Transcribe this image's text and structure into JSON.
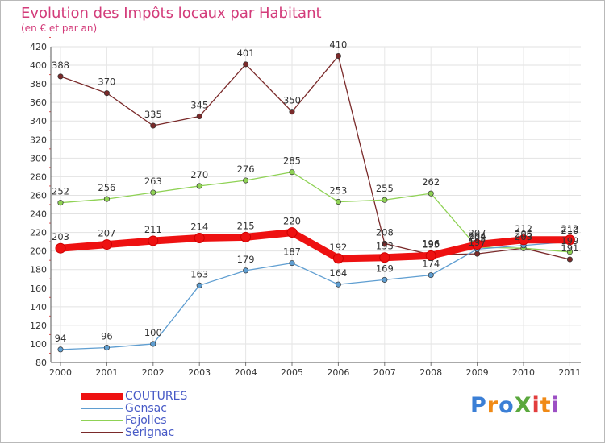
{
  "chart_data": {
    "type": "line",
    "title": "Evolution des Impôts locaux par Habitant",
    "subtitle": "(en € et par an)",
    "xlabel": "",
    "ylabel": "",
    "ylim": [
      80,
      420
    ],
    "yticks": [
      "80",
      "100",
      "120",
      "140",
      "160",
      "180",
      "200",
      "220",
      "240",
      "260",
      "280",
      "300",
      "320",
      "340",
      "360",
      "380",
      "400",
      "420"
    ],
    "categories": [
      "2000",
      "2001",
      "2002",
      "2003",
      "2004",
      "2005",
      "2006",
      "2007",
      "2008",
      "2009",
      "2010",
      "2011"
    ],
    "grid": true,
    "series": [
      {
        "name": "COUTURES",
        "color": "#ee1111",
        "values": [
          203,
          207,
          211,
          214,
          215,
          220,
          192,
          193,
          195,
          207,
          212,
          212
        ],
        "labels": [
          "203",
          "207",
          "211",
          "214",
          "215",
          "220",
          "192",
          "193",
          "195",
          "207",
          "212",
          "212"
        ]
      },
      {
        "name": "Gensac",
        "color": "#5f9ed1",
        "values": [
          94,
          96,
          100,
          163,
          179,
          187,
          164,
          169,
          174,
          202,
          206,
          210
        ],
        "labels": [
          "94",
          "96",
          "100",
          "163",
          "179",
          "187",
          "164",
          "169",
          "174",
          "202",
          "206",
          "210"
        ]
      },
      {
        "name": "Fajolles",
        "color": "#8fd255",
        "values": [
          252,
          256,
          263,
          270,
          276,
          285,
          253,
          255,
          262,
          204,
          203,
          199
        ],
        "labels": [
          "252",
          "256",
          "263",
          "270",
          "276",
          "285",
          "253",
          "255",
          "262",
          "204",
          "203",
          "199"
        ]
      },
      {
        "name": "Sérignac",
        "color": "#7a2a2a",
        "values": [
          388,
          370,
          335,
          345,
          401,
          350,
          410,
          208,
          196,
          197,
          203,
          191
        ],
        "labels": [
          "388",
          "370",
          "335",
          "345",
          "401",
          "350",
          "410",
          "208",
          "196",
          "197",
          "203",
          "191"
        ]
      }
    ],
    "legend_position": "bottom-left"
  },
  "logo": {
    "text": "ProXiti",
    "letters": [
      "P",
      "r",
      "o",
      "X",
      "i",
      "t",
      "i"
    ],
    "colors": [
      "#3b7fd6",
      "#f08a16",
      "#3b7fd6",
      "#5aa83d",
      "#e23d3d",
      "#f08a16",
      "#9c4fc4"
    ]
  }
}
